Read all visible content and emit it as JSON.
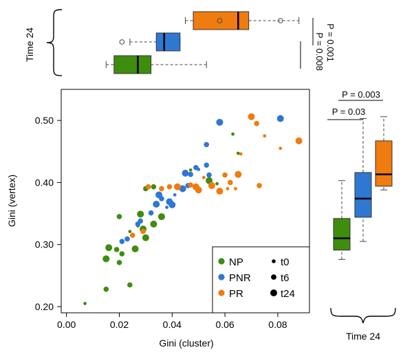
{
  "colors": {
    "NP": "#3f8d0f",
    "PNR": "#2f78d2",
    "PR": "#f07b0f"
  },
  "top_panel": {
    "label": "Time 24",
    "p_values": [
      "P = 0.001",
      "P = 0.008"
    ]
  },
  "right_panel": {
    "label": "Time 24",
    "p_values": [
      "P = 0.003",
      "P = 0.03"
    ]
  },
  "chart_data": {
    "type": "scatter",
    "xlabel": "Gini (cluster)",
    "ylabel": "Gini (vertex)",
    "xlim": [
      -0.002,
      0.092
    ],
    "ylim": [
      0.19,
      0.55
    ],
    "xticks": [
      "0.00",
      "0.02",
      "0.04",
      "0.06",
      "0.08"
    ],
    "yticks": [
      "0.20",
      "0.30",
      "0.40",
      "0.50"
    ],
    "legend": {
      "placement": "bottom-right",
      "groups": [
        "NP",
        "PNR",
        "PR"
      ],
      "times": [
        "t0",
        "t6",
        "t24"
      ]
    },
    "series": [
      {
        "name": "NP",
        "points": [
          [
            0.007,
            0.205,
            "t0"
          ],
          [
            0.015,
            0.228,
            "t6"
          ],
          [
            0.024,
            0.235,
            "t6"
          ],
          [
            0.015,
            0.277,
            "t24"
          ],
          [
            0.02,
            0.271,
            "t6"
          ],
          [
            0.016,
            0.295,
            "t24"
          ],
          [
            0.019,
            0.292,
            "t6"
          ],
          [
            0.021,
            0.285,
            "t6"
          ],
          [
            0.026,
            0.293,
            "t24"
          ],
          [
            0.02,
            0.345,
            "t6"
          ],
          [
            0.024,
            0.321,
            "t0"
          ],
          [
            0.028,
            0.349,
            "t24"
          ],
          [
            0.029,
            0.325,
            "t24"
          ],
          [
            0.03,
            0.311,
            "t24"
          ],
          [
            0.033,
            0.333,
            "t24"
          ],
          [
            0.036,
            0.345,
            "t24"
          ],
          [
            0.033,
            0.393,
            "t6"
          ],
          [
            0.03,
            0.39,
            "t6"
          ],
          [
            0.047,
            0.42,
            "t0"
          ],
          [
            0.054,
            0.403,
            "t24"
          ],
          [
            0.057,
            0.398,
            "t0"
          ],
          [
            0.063,
            0.478,
            "t0"
          ],
          [
            0.065,
            0.447,
            "t0"
          ],
          [
            0.027,
            0.33,
            "t0"
          ]
        ]
      },
      {
        "name": "PNR",
        "points": [
          [
            0.021,
            0.305,
            "t6"
          ],
          [
            0.023,
            0.309,
            "t6"
          ],
          [
            0.027,
            0.333,
            "t6"
          ],
          [
            0.028,
            0.338,
            "t6"
          ],
          [
            0.034,
            0.365,
            "t24"
          ],
          [
            0.035,
            0.38,
            "t24"
          ],
          [
            0.036,
            0.374,
            "t6"
          ],
          [
            0.039,
            0.369,
            "t24"
          ],
          [
            0.04,
            0.364,
            "t24"
          ],
          [
            0.041,
            0.38,
            "t0"
          ],
          [
            0.044,
            0.39,
            "t24"
          ],
          [
            0.046,
            0.395,
            "t6"
          ],
          [
            0.045,
            0.415,
            "t24"
          ],
          [
            0.047,
            0.413,
            "t6"
          ],
          [
            0.049,
            0.424,
            "t6"
          ],
          [
            0.05,
            0.421,
            "t0"
          ],
          [
            0.053,
            0.428,
            "t6"
          ],
          [
            0.054,
            0.412,
            "t6"
          ],
          [
            0.053,
            0.461,
            "t6"
          ],
          [
            0.058,
            0.497,
            "t24"
          ],
          [
            0.081,
            0.503,
            "t24"
          ],
          [
            0.032,
            0.351,
            "t6"
          ],
          [
            0.038,
            0.36,
            "t0"
          ]
        ]
      },
      {
        "name": "PR",
        "points": [
          [
            0.025,
            0.315,
            "t6"
          ],
          [
            0.029,
            0.321,
            "t6"
          ],
          [
            0.031,
            0.393,
            "t6"
          ],
          [
            0.036,
            0.39,
            "t6"
          ],
          [
            0.039,
            0.393,
            "t6"
          ],
          [
            0.042,
            0.393,
            "t24"
          ],
          [
            0.047,
            0.396,
            "t6"
          ],
          [
            0.049,
            0.393,
            "t24"
          ],
          [
            0.05,
            0.388,
            "t24"
          ],
          [
            0.052,
            0.408,
            "t0"
          ],
          [
            0.055,
            0.395,
            "t24"
          ],
          [
            0.058,
            0.386,
            "t24"
          ],
          [
            0.061,
            0.39,
            "t0"
          ],
          [
            0.06,
            0.412,
            "t6"
          ],
          [
            0.062,
            0.4,
            "t6"
          ],
          [
            0.065,
            0.413,
            "t24"
          ],
          [
            0.066,
            0.446,
            "t0"
          ],
          [
            0.07,
            0.506,
            "t24"
          ],
          [
            0.072,
            0.495,
            "t6"
          ],
          [
            0.073,
            0.395,
            "t6"
          ],
          [
            0.075,
            0.475,
            "t0"
          ],
          [
            0.081,
            0.455,
            "t0"
          ],
          [
            0.088,
            0.467,
            "t24"
          ],
          [
            0.064,
            0.39,
            "t0"
          ]
        ]
      }
    ],
    "top_boxplots": {
      "axis": "Gini (cluster)",
      "groups": [
        {
          "name": "PR",
          "whisker_low": 0.045,
          "q1": 0.048,
          "median": 0.065,
          "q3": 0.069,
          "whisker_high": 0.088,
          "outliers": [
            0.058,
            0.081
          ]
        },
        {
          "name": "PNR",
          "whisker_low": 0.024,
          "q1": 0.034,
          "median": 0.037,
          "q3": 0.043,
          "whisker_high": 0.043,
          "outliers": [
            0.021
          ]
        },
        {
          "name": "NP",
          "whisker_low": 0.015,
          "q1": 0.018,
          "median": 0.027,
          "q3": 0.032,
          "whisker_high": 0.053,
          "outliers": []
        }
      ]
    },
    "right_boxplots": {
      "axis": "Gini (vertex)",
      "groups": [
        {
          "name": "NP",
          "whisker_low": 0.276,
          "q1": 0.291,
          "median": 0.31,
          "q3": 0.342,
          "whisker_high": 0.403,
          "outliers": []
        },
        {
          "name": "PNR",
          "whisker_low": 0.305,
          "q1": 0.344,
          "median": 0.374,
          "q3": 0.416,
          "whisker_high": 0.503,
          "outliers": []
        },
        {
          "name": "PR",
          "whisker_low": 0.388,
          "q1": 0.394,
          "median": 0.413,
          "q3": 0.467,
          "whisker_high": 0.506,
          "outliers": []
        }
      ]
    }
  }
}
